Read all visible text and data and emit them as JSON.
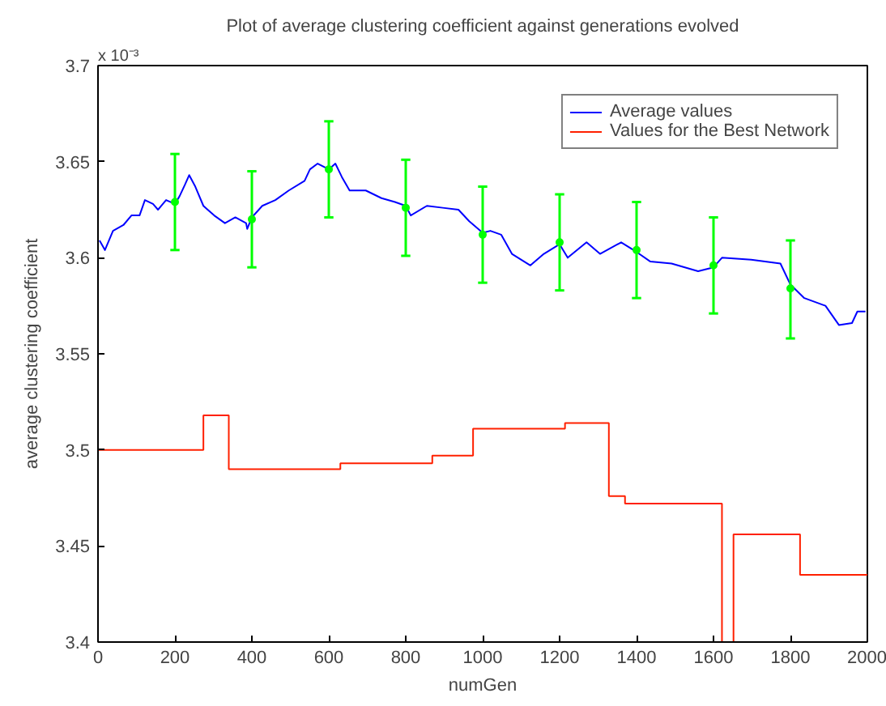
{
  "chart_data": {
    "type": "line",
    "title": "Plot of average clustering coefficient against generations evolved",
    "xlabel": "numGen",
    "ylabel": "average clustering coefficient",
    "annotations": [
      "x 10⁻³"
    ],
    "xlim": [
      0,
      2000
    ],
    "xticks": [
      0,
      200,
      400,
      600,
      800,
      1000,
      1200,
      1400,
      1600,
      1800,
      2000
    ],
    "ylim": [
      3.4,
      3.7
    ],
    "yticks": [
      3.4,
      3.45,
      3.5,
      3.55,
      3.6,
      3.65,
      3.7
    ],
    "grid": false,
    "legend": "top right",
    "marker": "none",
    "line_style": "solid",
    "series": [
      {
        "name": "Average values",
        "color": "#0000ff",
        "x": [
          4,
          18,
          39,
          66,
          87,
          108,
          122,
          143,
          156,
          177,
          200,
          212,
          226,
          237,
          253,
          274,
          302,
          330,
          357,
          385,
          388,
          400,
          427,
          461,
          496,
          537,
          551,
          571,
          600,
          617,
          634,
          654,
          696,
          737,
          772,
          800,
          813,
          855,
          896,
          937,
          965,
          1000,
          1020,
          1048,
          1076,
          1124,
          1159,
          1200,
          1221,
          1270,
          1305,
          1360,
          1400,
          1436,
          1491,
          1560,
          1600,
          1622,
          1698,
          1774,
          1800,
          1836,
          1891,
          1926,
          1960,
          1974,
          1995
        ],
        "values": [
          3.609,
          3.604,
          3.614,
          3.617,
          3.622,
          3.622,
          3.63,
          3.628,
          3.625,
          3.63,
          3.628,
          3.632,
          3.638,
          3.643,
          3.637,
          3.627,
          3.622,
          3.618,
          3.621,
          3.618,
          3.615,
          3.621,
          3.627,
          3.63,
          3.635,
          3.64,
          3.646,
          3.649,
          3.646,
          3.649,
          3.642,
          3.635,
          3.635,
          3.631,
          3.629,
          3.627,
          3.622,
          3.627,
          3.626,
          3.625,
          3.619,
          3.613,
          3.614,
          3.612,
          3.602,
          3.596,
          3.602,
          3.607,
          3.6,
          3.608,
          3.602,
          3.608,
          3.603,
          3.598,
          3.597,
          3.593,
          3.595,
          3.6,
          3.599,
          3.597,
          3.586,
          3.579,
          3.575,
          3.565,
          3.566,
          3.572,
          3.572
        ]
      },
      {
        "type": "scatter",
        "marker": "circle",
        "color": "#00ff00",
        "x": [
          200,
          400,
          600,
          800,
          1000,
          1200,
          1400,
          1600,
          1800
        ],
        "values": [
          3.629,
          3.62,
          3.646,
          3.626,
          3.612,
          3.608,
          3.604,
          3.596,
          3.584
        ],
        "errors": [
          [
            3.604,
            3.654
          ],
          [
            3.595,
            3.645
          ],
          [
            3.621,
            3.671
          ],
          [
            3.601,
            3.651
          ],
          [
            3.587,
            3.637
          ],
          [
            3.583,
            3.633
          ],
          [
            3.579,
            3.629
          ],
          [
            3.571,
            3.621
          ],
          [
            3.558,
            3.609
          ]
        ]
      },
      {
        "name": "Values for the Best Network",
        "type": "step",
        "color": "#ff2000",
        "x": [
          0,
          274,
          340,
          630,
          869,
          975,
          1214,
          1328,
          1370,
          1622,
          1652,
          1825,
          2000
        ],
        "values": [
          3.5,
          3.518,
          3.49,
          3.493,
          3.497,
          3.511,
          3.514,
          3.476,
          3.472,
          3.4,
          3.456,
          3.435,
          3.435
        ]
      }
    ]
  }
}
